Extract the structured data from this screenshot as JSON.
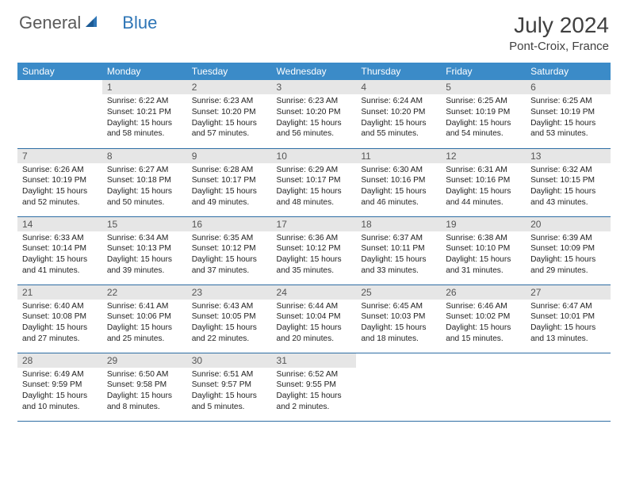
{
  "brand": {
    "part1": "General",
    "part2": "Blue"
  },
  "title": "July 2024",
  "location": "Pont-Croix, France",
  "weekdays": [
    "Sunday",
    "Monday",
    "Tuesday",
    "Wednesday",
    "Thursday",
    "Friday",
    "Saturday"
  ],
  "colors": {
    "header_bg": "#3b8bc8",
    "header_text": "#ffffff",
    "daynum_bg": "#e6e6e6",
    "row_border": "#2e6da4",
    "brand_gray": "#5a5a5a",
    "brand_blue": "#2e75b6"
  },
  "start_weekday": 1,
  "days": [
    {
      "n": 1,
      "sunrise": "6:22 AM",
      "sunset": "10:21 PM",
      "daylight": "15 hours and 58 minutes."
    },
    {
      "n": 2,
      "sunrise": "6:23 AM",
      "sunset": "10:20 PM",
      "daylight": "15 hours and 57 minutes."
    },
    {
      "n": 3,
      "sunrise": "6:23 AM",
      "sunset": "10:20 PM",
      "daylight": "15 hours and 56 minutes."
    },
    {
      "n": 4,
      "sunrise": "6:24 AM",
      "sunset": "10:20 PM",
      "daylight": "15 hours and 55 minutes."
    },
    {
      "n": 5,
      "sunrise": "6:25 AM",
      "sunset": "10:19 PM",
      "daylight": "15 hours and 54 minutes."
    },
    {
      "n": 6,
      "sunrise": "6:25 AM",
      "sunset": "10:19 PM",
      "daylight": "15 hours and 53 minutes."
    },
    {
      "n": 7,
      "sunrise": "6:26 AM",
      "sunset": "10:19 PM",
      "daylight": "15 hours and 52 minutes."
    },
    {
      "n": 8,
      "sunrise": "6:27 AM",
      "sunset": "10:18 PM",
      "daylight": "15 hours and 50 minutes."
    },
    {
      "n": 9,
      "sunrise": "6:28 AM",
      "sunset": "10:17 PM",
      "daylight": "15 hours and 49 minutes."
    },
    {
      "n": 10,
      "sunrise": "6:29 AM",
      "sunset": "10:17 PM",
      "daylight": "15 hours and 48 minutes."
    },
    {
      "n": 11,
      "sunrise": "6:30 AM",
      "sunset": "10:16 PM",
      "daylight": "15 hours and 46 minutes."
    },
    {
      "n": 12,
      "sunrise": "6:31 AM",
      "sunset": "10:16 PM",
      "daylight": "15 hours and 44 minutes."
    },
    {
      "n": 13,
      "sunrise": "6:32 AM",
      "sunset": "10:15 PM",
      "daylight": "15 hours and 43 minutes."
    },
    {
      "n": 14,
      "sunrise": "6:33 AM",
      "sunset": "10:14 PM",
      "daylight": "15 hours and 41 minutes."
    },
    {
      "n": 15,
      "sunrise": "6:34 AM",
      "sunset": "10:13 PM",
      "daylight": "15 hours and 39 minutes."
    },
    {
      "n": 16,
      "sunrise": "6:35 AM",
      "sunset": "10:12 PM",
      "daylight": "15 hours and 37 minutes."
    },
    {
      "n": 17,
      "sunrise": "6:36 AM",
      "sunset": "10:12 PM",
      "daylight": "15 hours and 35 minutes."
    },
    {
      "n": 18,
      "sunrise": "6:37 AM",
      "sunset": "10:11 PM",
      "daylight": "15 hours and 33 minutes."
    },
    {
      "n": 19,
      "sunrise": "6:38 AM",
      "sunset": "10:10 PM",
      "daylight": "15 hours and 31 minutes."
    },
    {
      "n": 20,
      "sunrise": "6:39 AM",
      "sunset": "10:09 PM",
      "daylight": "15 hours and 29 minutes."
    },
    {
      "n": 21,
      "sunrise": "6:40 AM",
      "sunset": "10:08 PM",
      "daylight": "15 hours and 27 minutes."
    },
    {
      "n": 22,
      "sunrise": "6:41 AM",
      "sunset": "10:06 PM",
      "daylight": "15 hours and 25 minutes."
    },
    {
      "n": 23,
      "sunrise": "6:43 AM",
      "sunset": "10:05 PM",
      "daylight": "15 hours and 22 minutes."
    },
    {
      "n": 24,
      "sunrise": "6:44 AM",
      "sunset": "10:04 PM",
      "daylight": "15 hours and 20 minutes."
    },
    {
      "n": 25,
      "sunrise": "6:45 AM",
      "sunset": "10:03 PM",
      "daylight": "15 hours and 18 minutes."
    },
    {
      "n": 26,
      "sunrise": "6:46 AM",
      "sunset": "10:02 PM",
      "daylight": "15 hours and 15 minutes."
    },
    {
      "n": 27,
      "sunrise": "6:47 AM",
      "sunset": "10:01 PM",
      "daylight": "15 hours and 13 minutes."
    },
    {
      "n": 28,
      "sunrise": "6:49 AM",
      "sunset": "9:59 PM",
      "daylight": "15 hours and 10 minutes."
    },
    {
      "n": 29,
      "sunrise": "6:50 AM",
      "sunset": "9:58 PM",
      "daylight": "15 hours and 8 minutes."
    },
    {
      "n": 30,
      "sunrise": "6:51 AM",
      "sunset": "9:57 PM",
      "daylight": "15 hours and 5 minutes."
    },
    {
      "n": 31,
      "sunrise": "6:52 AM",
      "sunset": "9:55 PM",
      "daylight": "15 hours and 2 minutes."
    }
  ],
  "labels": {
    "sunrise": "Sunrise:",
    "sunset": "Sunset:",
    "daylight": "Daylight:"
  }
}
